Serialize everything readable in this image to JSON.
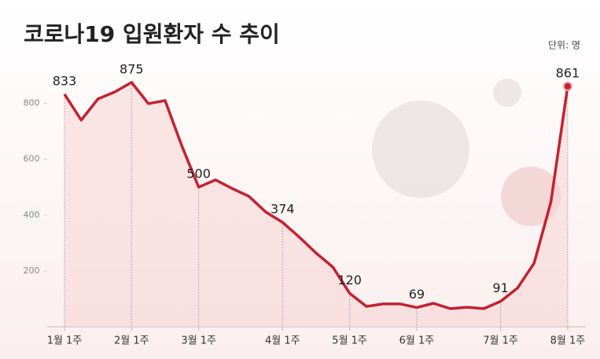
{
  "chart_data": {
    "type": "line",
    "title": "코로나19 입원환자 수 추이",
    "unit_label": "단위: 명",
    "categories": [
      "1월 1주",
      null,
      null,
      null,
      "2월 1주",
      null,
      null,
      null,
      "3월 1주",
      null,
      null,
      null,
      null,
      "4월 1주",
      null,
      null,
      null,
      "5월 1주",
      null,
      null,
      null,
      "6월 1주",
      null,
      null,
      null,
      null,
      "7월 1주",
      null,
      null,
      null,
      "8월 1주"
    ],
    "series": [
      {
        "name": "입원환자 수",
        "color": "#c4212f",
        "values": [
          833,
          740,
          816,
          841,
          875,
          799,
          810,
          647,
          500,
          526,
          495,
          467,
          411,
          374,
          321,
          264,
          214,
          120,
          73,
          82,
          82,
          69,
          84,
          65,
          70,
          65,
          91,
          138,
          228,
          447,
          861
        ]
      }
    ],
    "ylim": [
      0,
      900
    ],
    "yticks": [
      200,
      400,
      600,
      800
    ],
    "grid": false
  }
}
